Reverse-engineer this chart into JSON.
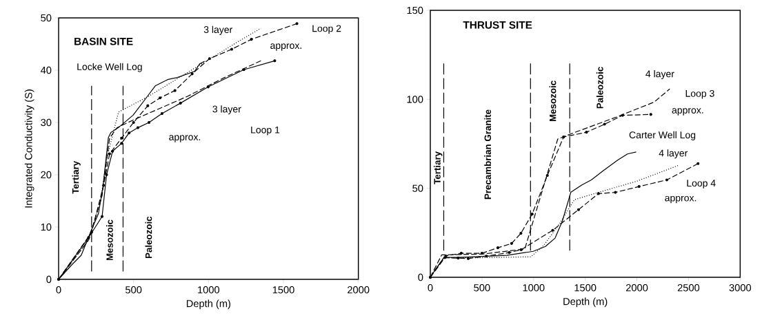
{
  "chart_data": [
    {
      "type": "line",
      "title": "BASIN SITE",
      "xlabel": "Depth (m)",
      "ylabel": "Integrated Conductivity (S)",
      "xlim": [
        0,
        2000
      ],
      "ylim": [
        0,
        50
      ],
      "xticks": [
        0,
        500,
        1000,
        1500,
        2000
      ],
      "yticks": [
        0,
        10,
        20,
        30,
        40,
        50
      ],
      "series": [
        {
          "color": "#000000",
          "line_style": "solid",
          "marker": "none",
          "x": [
            0,
            85,
            151,
            217,
            266,
            296,
            332,
            349,
            398,
            497,
            595,
            645,
            727,
            793,
            908,
            941,
            974
          ],
          "values": [
            0,
            2.7,
            4.6,
            9.3,
            12.6,
            17.7,
            27.1,
            28.1,
            29,
            31.4,
            35.1,
            37,
            38.2,
            38.6,
            39.8,
            41.2,
            41.7
          ]
        },
        {
          "color": "#000000",
          "line_style": "dotted",
          "marker": "none",
          "x": [
            0,
            200,
            280,
            320,
            400,
            600,
            800,
            1000,
            1200,
            1350
          ],
          "values": [
            0,
            7.5,
            15,
            23,
            32,
            35,
            38.5,
            42,
            45.5,
            48
          ]
        },
        {
          "color": "#000000",
          "line_style": "dashed",
          "marker": "circle",
          "x": [
            0,
            220,
            300,
            340,
            420,
            500,
            595,
            677,
            776,
            891,
            1007,
            1155,
            1286,
            1590
          ],
          "values": [
            0,
            9,
            18,
            24,
            27,
            30,
            33.2,
            34.7,
            36.1,
            39.3,
            42.2,
            44,
            45.9,
            48.9
          ]
        },
        {
          "color": "#000000",
          "line_style": "dashed",
          "marker": "none",
          "x": [
            0,
            200,
            290,
            340,
            390,
            500,
            700,
            860,
            1100,
            1350
          ],
          "values": [
            0,
            7.5,
            16,
            27,
            29,
            30.5,
            33,
            35,
            38.5,
            41.8
          ]
        },
        {
          "color": "#000000",
          "line_style": "solid",
          "marker": "circle",
          "x": [
            0,
            200,
            290,
            320,
            360,
            420,
            470,
            529,
            603,
            690,
            813,
            998,
            1236,
            1442
          ],
          "values": [
            0,
            8,
            12,
            20,
            24.5,
            26,
            28,
            29,
            30,
            31.7,
            33.7,
            36.8,
            40.1,
            41.8
          ]
        }
      ],
      "ref_lines": [
        {
          "axis": "x",
          "value": 220,
          "line_style": "dashed"
        },
        {
          "axis": "x",
          "value": 430,
          "line_style": "dashed"
        }
      ],
      "annotations": [
        "Locke Well Log",
        "3 layer",
        "Loop 2",
        "approx.",
        "3 layer",
        "approx.",
        "Loop 1",
        "Tertiary",
        "Mesozoic",
        "Paleozoic"
      ]
    },
    {
      "type": "line",
      "title": "THRUST SITE",
      "xlabel": "Depth (m)",
      "xlim": [
        0,
        3000
      ],
      "ylim": [
        0,
        150
      ],
      "xticks": [
        0,
        500,
        1000,
        1500,
        2000,
        2500,
        3000
      ],
      "yticks": [
        0,
        50,
        100,
        150
      ],
      "series": [
        {
          "color": "#000000",
          "line_style": "solid",
          "marker": "none",
          "x": [
            0,
            51,
            133,
            273,
            740,
            997,
            1114,
            1208,
            1278,
            1360,
            1465,
            1559,
            1675,
            1816,
            1909,
            1993
          ],
          "values": [
            0,
            4.5,
            11.2,
            11.2,
            12.3,
            14.6,
            17.3,
            22,
            31.5,
            47.7,
            51.8,
            54.7,
            59.9,
            65.9,
            69.3,
            70.4
          ]
        },
        {
          "color": "#000000",
          "line_style": "dashed",
          "marker": "none",
          "x": [
            0,
            110,
            500,
            915,
            1234,
            1371,
            1800,
            2166,
            2318
          ],
          "values": [
            0,
            12.6,
            13,
            15.9,
            77.7,
            80.8,
            90,
            98.4,
            105.8
          ]
        },
        {
          "color": "#000000",
          "line_style": "dashed",
          "marker": "circle",
          "x": [
            0,
            150,
            300,
            500,
            654,
            787,
            877,
            986,
            1133,
            1290,
            1512,
            1687,
            1862,
            2135
          ],
          "values": [
            0,
            12,
            13.5,
            13.5,
            16.6,
            19,
            24.7,
            35.5,
            57.2,
            78.8,
            81.5,
            86,
            91,
            91.5
          ]
        },
        {
          "color": "#000000",
          "line_style": "dotted",
          "marker": "none",
          "x": [
            0,
            130,
            500,
            974,
            1100,
            1250,
            1395,
            1628,
            2000,
            2399
          ],
          "values": [
            0,
            11,
            11,
            11.5,
            18,
            30,
            43.6,
            47.7,
            54,
            62.8
          ]
        },
        {
          "color": "#000000",
          "line_style": "dashed",
          "marker": "circle",
          "x": [
            0,
            140,
            270,
            367,
            542,
            764,
            880,
            1185,
            1435,
            1628,
            1792,
            2021,
            2290,
            2592
          ],
          "values": [
            0,
            11,
            10.8,
            10.5,
            11.9,
            13.9,
            15.5,
            26.4,
            38,
            47,
            47.7,
            51,
            54.7,
            63.9
          ]
        }
      ],
      "ref_lines": [
        {
          "axis": "x",
          "value": 130,
          "line_style": "dashed"
        },
        {
          "axis": "x",
          "value": 970,
          "line_style": "dashed"
        },
        {
          "axis": "x",
          "value": 1350,
          "line_style": "dashed"
        }
      ],
      "annotations": [
        "4 layer",
        "Loop 3",
        "approx.",
        "Carter Well Log",
        "4 layer",
        "Loop 4",
        "approx.",
        "Tertiary",
        "Precambrian Granite",
        "Mesozoic",
        "Paleozoic"
      ]
    }
  ]
}
